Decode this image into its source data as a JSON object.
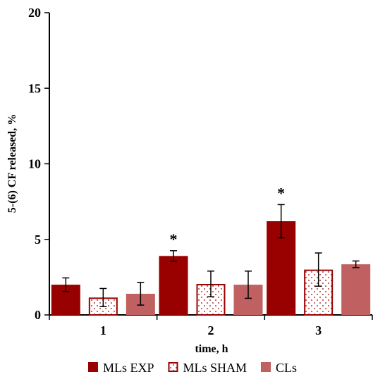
{
  "chart_data": {
    "type": "bar",
    "xlabel": "time, h",
    "ylabel": "5-(6) CF released, %",
    "ylim": [
      0,
      20
    ],
    "yticks": [
      0,
      5,
      10,
      15,
      20
    ],
    "categories": [
      "1",
      "2",
      "3"
    ],
    "series": [
      {
        "name": "MLs EXP",
        "values": [
          2.0,
          3.9,
          6.2
        ],
        "errors": [
          0.45,
          0.35,
          1.1
        ],
        "color": "#990000",
        "pattern": "solid",
        "significance": [
          "",
          "*",
          "*"
        ]
      },
      {
        "name": "MLs SHAM",
        "values": [
          1.15,
          2.05,
          3.0
        ],
        "errors": [
          0.6,
          0.85,
          1.1
        ],
        "color": "#990000",
        "pattern": "dotted-outline",
        "significance": [
          "",
          "",
          ""
        ]
      },
      {
        "name": "CLs",
        "values": [
          1.4,
          2.0,
          3.35
        ],
        "errors": [
          0.75,
          0.9,
          0.22
        ],
        "color": "#c06060",
        "pattern": "solid",
        "significance": [
          "",
          "",
          ""
        ]
      }
    ],
    "grid": false,
    "legend_position": "bottom"
  }
}
